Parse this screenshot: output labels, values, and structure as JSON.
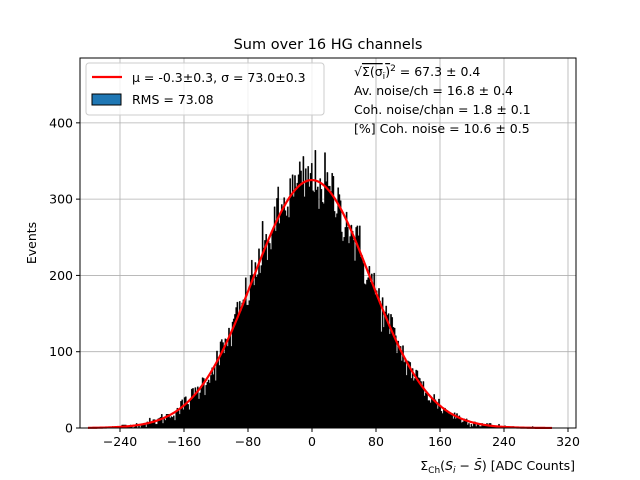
{
  "chart_data": {
    "type": "bar",
    "title": "Sum over 16 HG channels",
    "xlabel": "Σ_Ch(S_i − S̄) [ADC Counts]",
    "ylabel": "Events",
    "xlim": [
      -290,
      330
    ],
    "ylim": [
      0,
      485
    ],
    "xticks": [
      -240,
      -160,
      -80,
      0,
      80,
      160,
      240,
      320
    ],
    "yticks": [
      0,
      100,
      200,
      300,
      400
    ],
    "grid": true,
    "histogram": {
      "color": "#000000",
      "x_range": [
        -280,
        300
      ],
      "bin_width": 1.5,
      "amplitude": 325,
      "mean": -0.3,
      "sigma": 73.0,
      "max_count": 372
    },
    "fit": {
      "color": "#ff0000",
      "mean": -0.3,
      "sigma": 73.0,
      "amplitude": 325
    },
    "legend": {
      "position": "top-left",
      "entries": [
        {
          "label": "μ = -0.3±0.3, σ = 73.0±0.3",
          "color": "#ff0000",
          "kind": "line"
        },
        {
          "label": "RMS = 73.08",
          "color": "#1f77b4",
          "kind": "patch"
        }
      ]
    },
    "annotations": [
      "√Σ(σ_i)² = 67.3 ± 0.4",
      "Av. noise/ch = 16.8 ± 0.4",
      "Coh. noise/chan = 1.8 ± 0.1",
      "[%] Coh. noise = 10.6 ± 0.5"
    ]
  }
}
